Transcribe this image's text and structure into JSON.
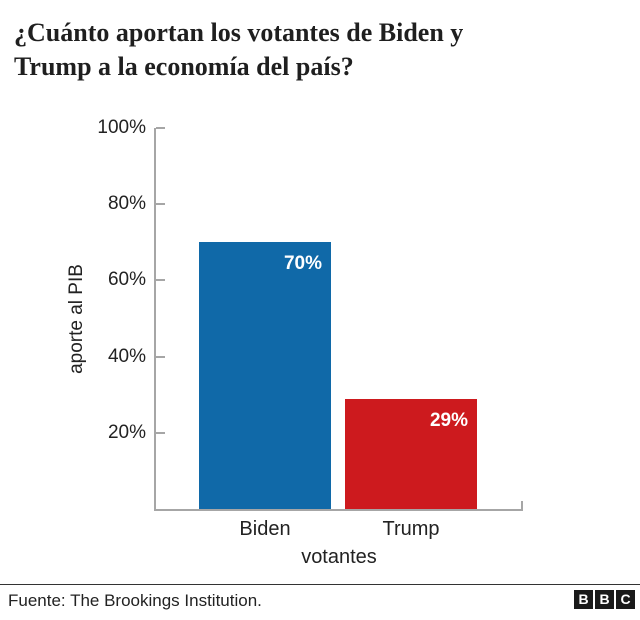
{
  "title": "¿Cuánto aportan los votantes de Biden y\nTrump a la economía del país?",
  "chart_data": {
    "type": "bar",
    "categories": [
      "Biden",
      "Trump"
    ],
    "values": [
      70,
      29
    ],
    "bar_value_labels": [
      "70%",
      "29%"
    ],
    "bar_colors": [
      "#1069a8",
      "#cd1a1e"
    ],
    "title": "¿Cuánto aportan los votantes de Biden y Trump a la economía del país?",
    "xlabel": "votantes",
    "ylabel": "aporte al PIB",
    "ylim": [
      0,
      100
    ],
    "ytick_values": [
      20,
      40,
      60,
      80,
      100
    ],
    "ytick_labels": [
      "20%",
      "40%",
      "60%",
      "80%",
      "100%"
    ],
    "grid": false,
    "legend": "none"
  },
  "footer": {
    "source": "Fuente: The Brookings Institution.",
    "logo_letters": [
      "B",
      "B",
      "C"
    ]
  },
  "colors": {
    "bar_biden": "#1069a8",
    "bar_trump": "#cd1a1e",
    "axis": "#a6a6a6",
    "text": "#222222",
    "bar_label_text": "#ffffff"
  }
}
